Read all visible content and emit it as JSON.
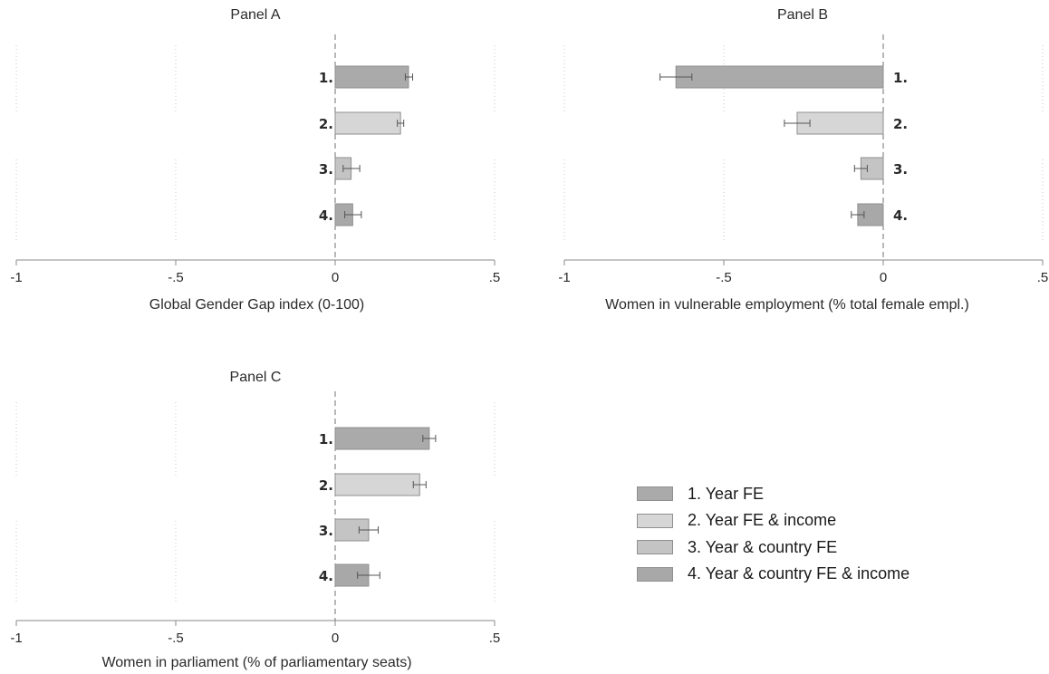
{
  "chart_data": [
    {
      "type": "bar",
      "title": "Panel A",
      "xlabel": "Global Gender Gap index (0-100)",
      "xlim": [
        -1,
        0.5
      ],
      "x_ticks": [
        "-1",
        "-.5",
        "0",
        ".5"
      ],
      "x_tick_values": [
        -1,
        -0.5,
        0,
        0.5
      ],
      "categories": [
        "1.",
        "2.",
        "3.",
        "4."
      ],
      "values": [
        0.23,
        0.205,
        0.05,
        0.055
      ],
      "error_low": [
        0.22,
        0.195,
        0.025,
        0.03
      ],
      "error_high": [
        0.243,
        0.215,
        0.077,
        0.082
      ],
      "category_label_side": "left-of-zero",
      "grid": "vertical dotted"
    },
    {
      "type": "bar",
      "title": "Panel B",
      "xlabel": "Women in vulnerable employment (% total female empl.)",
      "xlim": [
        -1,
        0.5
      ],
      "x_ticks": [
        "-1",
        "-.5",
        "0",
        ".5"
      ],
      "x_tick_values": [
        -1,
        -0.5,
        0,
        0.5
      ],
      "categories": [
        "1.",
        "2.",
        "3.",
        "4."
      ],
      "values": [
        -0.65,
        -0.27,
        -0.07,
        -0.08
      ],
      "error_low": [
        -0.7,
        -0.31,
        -0.09,
        -0.1
      ],
      "error_high": [
        -0.6,
        -0.23,
        -0.05,
        -0.06
      ],
      "category_label_side": "right-of-zero",
      "grid": "vertical dotted"
    },
    {
      "type": "bar",
      "title": "Panel C",
      "xlabel": "Women in parliament (% of parliamentary seats)",
      "xlim": [
        -1,
        0.5
      ],
      "x_ticks": [
        "-1",
        "-.5",
        "0",
        ".5"
      ],
      "x_tick_values": [
        -1,
        -0.5,
        0,
        0.5
      ],
      "categories": [
        "1.",
        "2.",
        "3.",
        "4."
      ],
      "values": [
        0.295,
        0.265,
        0.105,
        0.105
      ],
      "error_low": [
        0.275,
        0.245,
        0.075,
        0.07
      ],
      "error_high": [
        0.315,
        0.285,
        0.135,
        0.14
      ],
      "category_label_side": "left-of-zero",
      "grid": "vertical dotted"
    }
  ],
  "legend": {
    "placement": "bottom-right",
    "items": [
      {
        "label": "1. Year FE",
        "color": "#aaaaaa"
      },
      {
        "label": "2. Year FE & income",
        "color": "#d6d6d6"
      },
      {
        "label": "3. Year & country FE",
        "color": "#c4c4c4"
      },
      {
        "label": "4. Year & country FE & income",
        "color": "#a8a8a8"
      }
    ]
  },
  "colors": {
    "bar_border": "#8f8f8f",
    "grid": "#c8c8c8",
    "axis": "#8a8a8a",
    "zero_line": "#707070",
    "error_bar": "#555555"
  }
}
